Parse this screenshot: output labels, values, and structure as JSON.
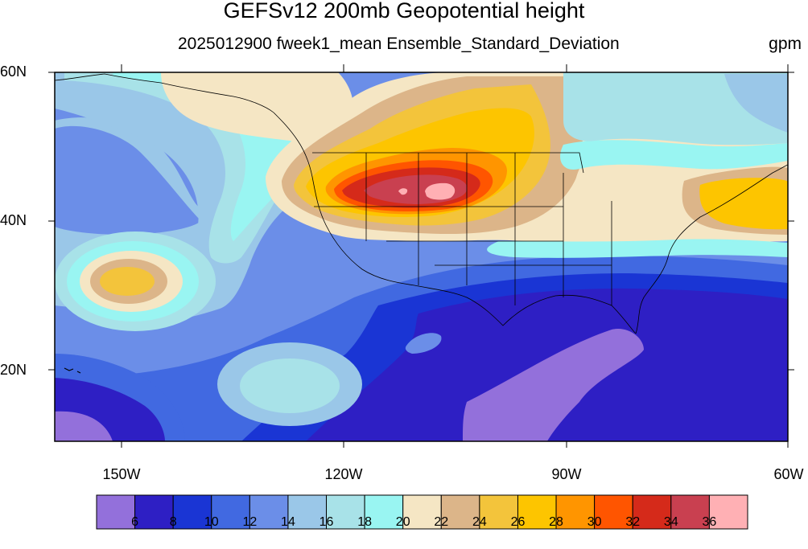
{
  "title": "GEFSv12 200mb Geopotential height",
  "subtitle": "2025012900 fweek1_mean Ensemble_Standard_Deviation",
  "units": "gpm",
  "lat_labels": [
    "60N",
    "40N",
    "20N"
  ],
  "lon_labels": [
    "150W",
    "120W",
    "90W",
    "60W"
  ],
  "colorbar": {
    "colors": [
      "#9370db",
      "#2e1fc4",
      "#1a35d4",
      "#4169e1",
      "#6b8ee8",
      "#9ac7e8",
      "#a8e2e8",
      "#99f5f2",
      "#f5e6c4",
      "#dcb589",
      "#f3c43b",
      "#fdc500",
      "#ff9500",
      "#ff5500",
      "#d52a1a",
      "#c94050",
      "#ffb0b4"
    ],
    "labels": [
      "6",
      "8",
      "10",
      "12",
      "14",
      "16",
      "18",
      "20",
      "22",
      "24",
      "26",
      "28",
      "30",
      "32",
      "34",
      "36"
    ]
  }
}
